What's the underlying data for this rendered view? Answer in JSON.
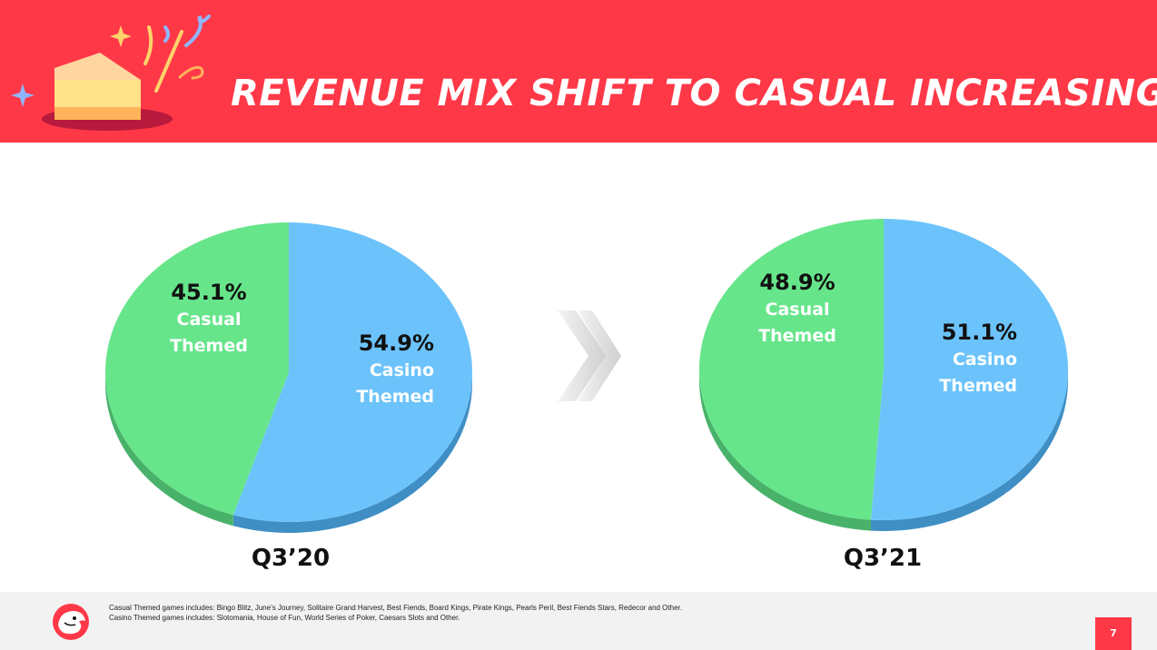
{
  "header": {
    "title": "REVENUE MIX SHIFT TO CASUAL INCREASING"
  },
  "colors": {
    "brand": "#ff3848",
    "casual": "#67e58b",
    "casual_side": "#49b26a",
    "casino": "#6cc3fb",
    "casino_side": "#3f8fc4"
  },
  "chart_data": [
    {
      "type": "pie",
      "title": "Q3’20",
      "categories": [
        "Casual Themed",
        "Casino Themed"
      ],
      "values": [
        45.1,
        54.9
      ],
      "labels": [
        {
          "pct": "45.1%",
          "line1": "Casual",
          "line2": "Themed"
        },
        {
          "pct": "54.9%",
          "line1": "Casino",
          "line2": "Themed"
        }
      ]
    },
    {
      "type": "pie",
      "title": "Q3’21",
      "categories": [
        "Casual Themed",
        "Casino Themed"
      ],
      "values": [
        48.9,
        51.1
      ],
      "labels": [
        {
          "pct": "48.9%",
          "line1": "Casual",
          "line2": "Themed"
        },
        {
          "pct": "51.1%",
          "line1": "Casino",
          "line2": "Themed"
        }
      ]
    }
  ],
  "footer": {
    "note_casual": "Casual Themed games includes: Bingo Blitz, June’s Journey, Solitaire Grand Harvest, Best Fiends, Board Kings, Pirate Kings, Pearls Peril, Best Fiends Stars, Redecor and Other.",
    "note_casino": "Casino Themed games includes: Slotomania, House of Fun, World Series of Poker, Caesars Slots and Other.",
    "page_number": "7"
  },
  "icons": {
    "header_art": "cake-confetti-icon",
    "logo": "cheetah-logo-icon",
    "arrow": "double-chevron-right-icon"
  }
}
